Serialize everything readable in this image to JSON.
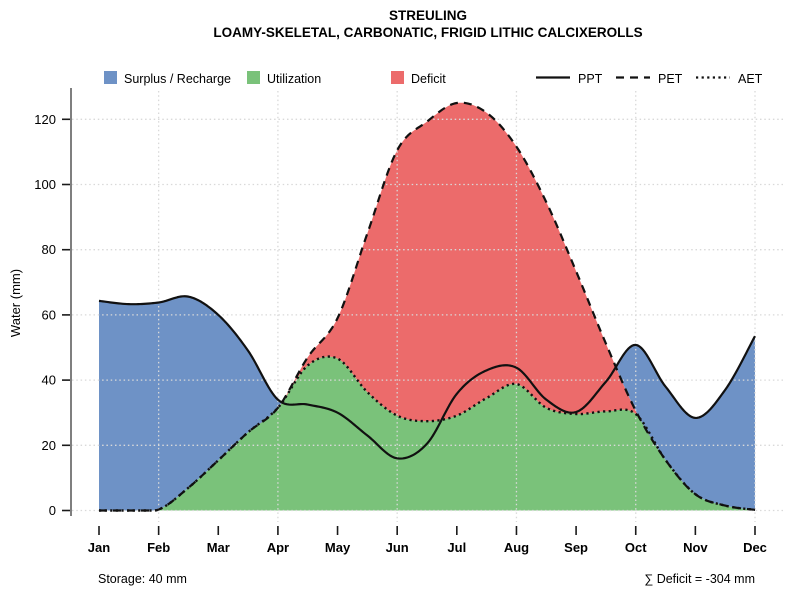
{
  "title": "STREULING",
  "subtitle": "LOAMY-SKELETAL, CARBONATIC, FRIGID LITHIC CALCIXEROLLS",
  "legend": {
    "fills": [
      {
        "label": "Surplus / Recharge",
        "color": "#6E92C6"
      },
      {
        "label": "Utilization",
        "color": "#7AC27A"
      },
      {
        "label": "Deficit",
        "color": "#EC6B6B"
      }
    ],
    "lines": [
      {
        "label": "PPT",
        "style": "solid"
      },
      {
        "label": "PET",
        "style": "dashed"
      },
      {
        "label": "AET",
        "style": "dotted"
      }
    ]
  },
  "axes": {
    "y": {
      "label": "Water (mm)",
      "ticks": [
        "0",
        "20",
        "40",
        "60",
        "80",
        "100",
        "120"
      ],
      "tick_values": [
        0,
        20,
        40,
        60,
        80,
        100,
        120
      ]
    },
    "x": {
      "months": [
        "Jan",
        "Feb",
        "Mar",
        "Apr",
        "May",
        "Jun",
        "Jul",
        "Aug",
        "Sep",
        "Oct",
        "Nov",
        "Dec"
      ]
    }
  },
  "annotations": {
    "storage": "Storage: 40 mm",
    "deficit": "∑ Deficit = -304 mm"
  },
  "colors": {
    "surplus": "#6E92C6",
    "utilization": "#7AC27A",
    "deficit": "#EC6B6B",
    "line": "#111111",
    "grid": "#D9D9D9",
    "axis": "#7F7F7F",
    "tick": "#1A1A1A"
  },
  "chart_data": {
    "type": "area",
    "title": "STREULING",
    "subtitle": "LOAMY-SKELETAL, CARBONATIC, FRIGID LITHIC CALCIXEROLLS",
    "ylabel": "Water (mm)",
    "ylim": [
      0,
      128
    ],
    "grid": true,
    "categories": [
      "Jan",
      "Feb",
      "Mar",
      "Apr",
      "May",
      "Jun",
      "Jul",
      "Aug",
      "Sep",
      "Oct",
      "Nov",
      "Dec"
    ],
    "series": [
      {
        "name": "PPT",
        "line": "solid",
        "monthly": [
          64,
          64,
          60,
          34,
          30,
          16,
          36,
          44,
          30,
          51,
          28,
          54
        ]
      },
      {
        "name": "PET",
        "line": "dashed",
        "monthly": [
          0,
          0,
          15,
          32,
          59,
          111,
          125,
          112,
          73,
          31,
          5,
          0
        ]
      },
      {
        "name": "AET",
        "line": "dotted",
        "monthly": [
          0,
          0,
          15,
          32,
          47,
          29,
          29,
          39,
          30,
          30,
          5,
          0
        ]
      }
    ],
    "areas": [
      {
        "name": "Surplus / Recharge",
        "between": [
          "PET",
          "PPT"
        ],
        "where": "PPT > PET"
      },
      {
        "name": "Utilization",
        "between": [
          "0",
          "AET"
        ]
      },
      {
        "name": "Deficit",
        "between": [
          "AET",
          "PET"
        ],
        "where": "PET > AET"
      }
    ],
    "storage_mm": 40,
    "deficit_sum_mm": -304,
    "smooth_control_points": {
      "x_months": [
        0,
        0.5,
        1,
        1.5,
        2,
        2.5,
        3,
        3.5,
        4,
        4.5,
        5,
        5.5,
        6,
        6.5,
        7,
        7.5,
        8,
        8.5,
        9,
        9.5,
        10,
        10.5,
        11
      ],
      "PPT": [
        64.3,
        63.3,
        63.8,
        65.6,
        60,
        49,
        34,
        32.5,
        30,
        23,
        16,
        20.5,
        35.8,
        43,
        43.8,
        34,
        30.2,
        39.5,
        50.8,
        38,
        28.4,
        37,
        53.5
      ],
      "PET": [
        0,
        0,
        0.3,
        7,
        15.4,
        24,
        31.5,
        47,
        59,
        85,
        110.5,
        119.3,
        125,
        122,
        111.6,
        94.6,
        73.4,
        51.2,
        30.6,
        15.5,
        5,
        1.5,
        0.2
      ],
      "AET": [
        0,
        0,
        0.3,
        7,
        15.4,
        24,
        31.5,
        44.5,
        46.6,
        36.3,
        29.1,
        27.4,
        29.1,
        34.5,
        38.8,
        31.5,
        29.6,
        30.4,
        29.6,
        15.5,
        5,
        1.5,
        0.2
      ]
    }
  }
}
